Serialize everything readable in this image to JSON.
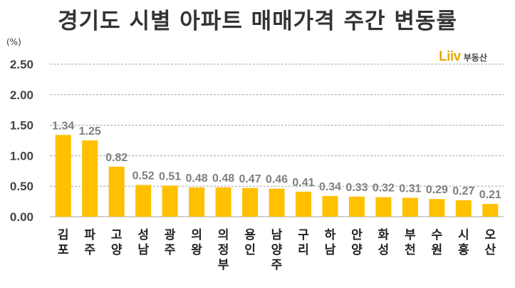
{
  "title": "경기도 시별 아파트 매매가격 주간 변동률",
  "unit_label": "(%)",
  "logo": {
    "mark": "Liiv",
    "text": "부동산"
  },
  "colors": {
    "bar": "#FFC000",
    "grid": "#A6A6A6",
    "value_label": "#7F7F7F"
  },
  "chart_data": {
    "type": "bar",
    "title": "경기도 시별 아파트 매매가격 주간 변동률",
    "xlabel": "",
    "ylabel": "(%)",
    "ylim": [
      0,
      2.5
    ],
    "yticks": [
      "0.00",
      "0.50",
      "1.00",
      "1.50",
      "2.00",
      "2.50"
    ],
    "grid": true,
    "categories": [
      "김포",
      "파주",
      "고양",
      "성남",
      "광주",
      "의왕",
      "의정부",
      "용인",
      "남양주",
      "구리",
      "하남",
      "안양",
      "화성",
      "부천",
      "수원",
      "시흥",
      "오산"
    ],
    "values": [
      1.34,
      1.25,
      0.82,
      0.52,
      0.51,
      0.48,
      0.48,
      0.47,
      0.46,
      0.41,
      0.34,
      0.33,
      0.32,
      0.31,
      0.29,
      0.27,
      0.21
    ],
    "value_labels": [
      "1.34",
      "1.25",
      "0.82",
      "0.52",
      "0.51",
      "0.48",
      "0.48",
      "0.47",
      "0.46",
      "0.41",
      "0.34",
      "0.33",
      "0.32",
      "0.31",
      "0.29",
      "0.27",
      "0.21"
    ]
  }
}
